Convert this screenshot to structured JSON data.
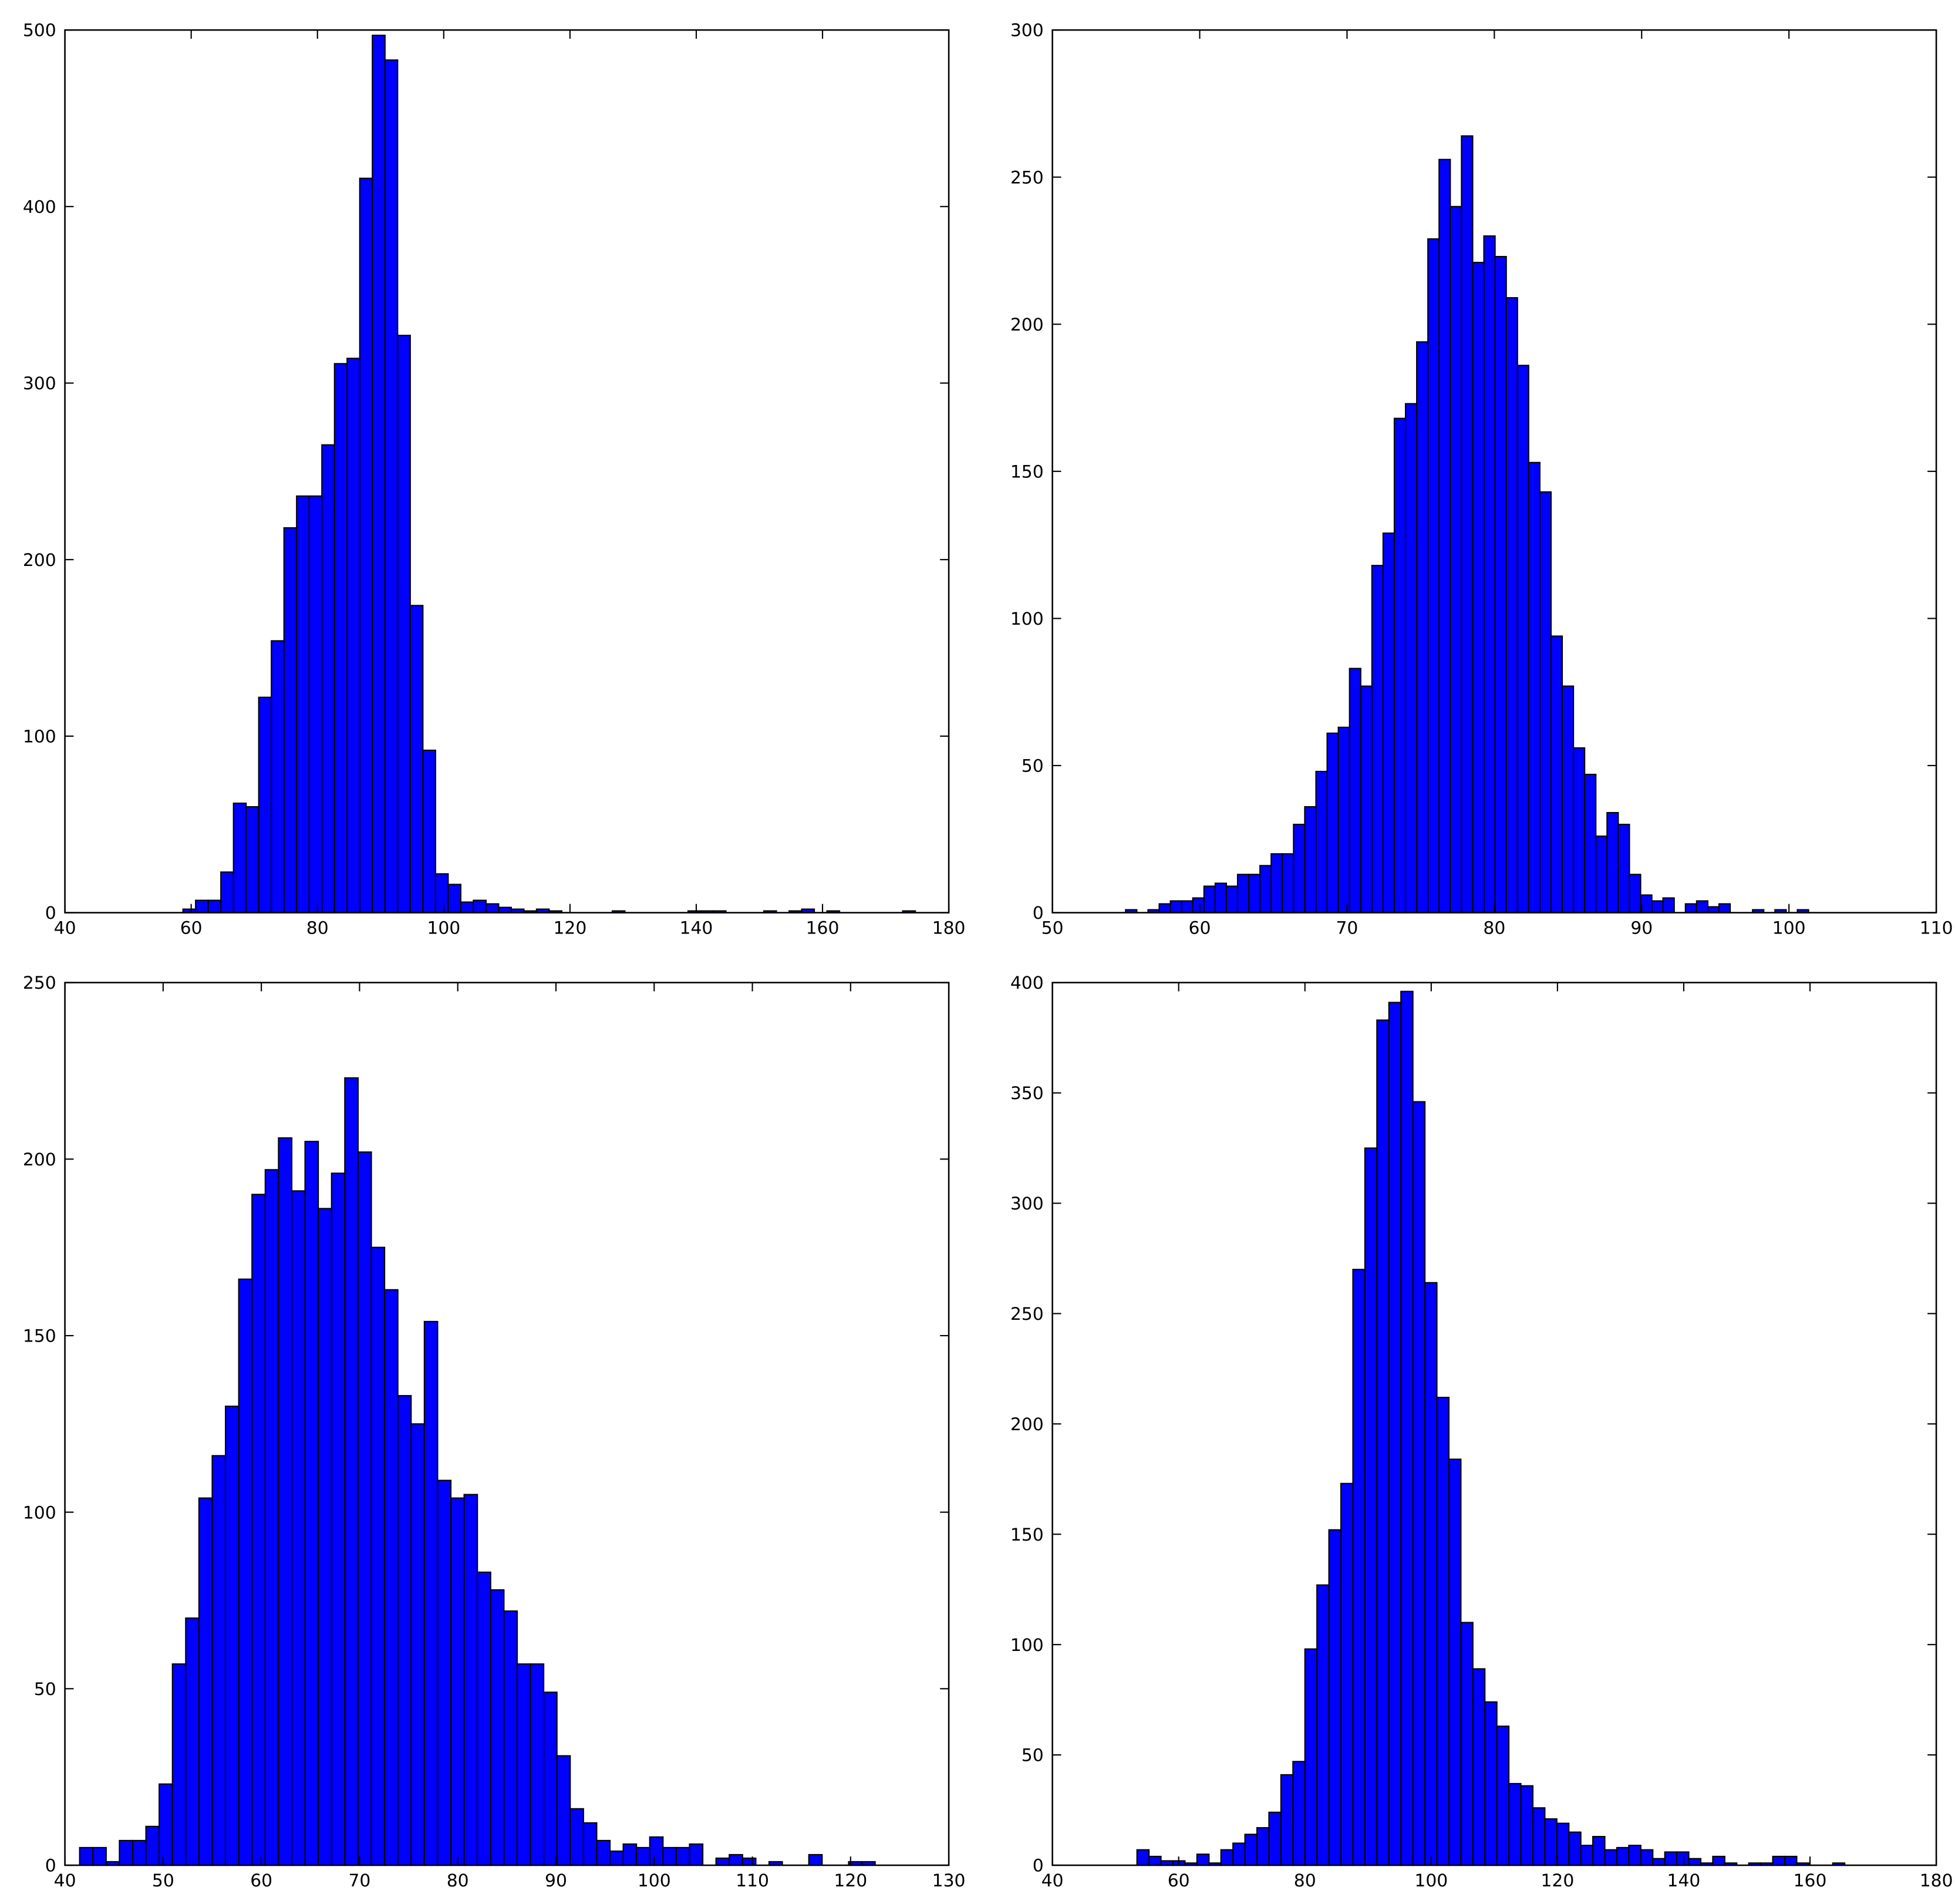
{
  "chart_data": [
    {
      "type": "histogram",
      "color": "#0000ff",
      "bins": [
        58.7,
        60.7,
        62.7,
        64.7,
        66.7,
        68.7,
        70.7,
        72.7,
        74.7,
        76.7,
        78.7,
        80.7,
        82.7,
        84.7,
        86.7,
        88.7,
        90.7,
        92.7,
        94.7,
        96.7,
        98.7,
        100.7,
        102.7,
        104.7,
        106.7,
        108.7,
        110.7,
        112.7,
        114.7,
        116.7,
        118.7,
        120.7,
        122.7,
        124.7,
        126.7,
        128.7,
        130.7,
        132.7,
        134.7,
        136.7,
        138.7,
        140.7,
        142.7,
        144.7,
        146.7,
        148.7,
        150.7,
        152.7,
        154.7,
        156.7,
        158.7,
        160.7,
        162.7,
        164.7,
        166.7,
        168.7,
        170.7,
        172.7,
        174.7,
        176.7
      ],
      "values": [
        2,
        7,
        7,
        23,
        62,
        60,
        122,
        154,
        218,
        236,
        236,
        265,
        311,
        314,
        416,
        497,
        483,
        327,
        174,
        92,
        22,
        16,
        6,
        7,
        5,
        3,
        2,
        1,
        2,
        1,
        0,
        0,
        0,
        0,
        1,
        0,
        0,
        0,
        0,
        0,
        1,
        1,
        1,
        0,
        0,
        0,
        1,
        0,
        1,
        2,
        0,
        1,
        0,
        0,
        0,
        0,
        0,
        1,
        0
      ],
      "xlim": [
        40,
        180
      ],
      "ylim": [
        0,
        500
      ],
      "xticks": [
        40,
        60,
        80,
        100,
        120,
        140,
        160,
        180
      ],
      "yticks": [
        0,
        100,
        200,
        300,
        400,
        500
      ]
    },
    {
      "type": "histogram",
      "color": "#0000ff",
      "bins": [
        54.97,
        55.73,
        56.49,
        57.25,
        58.01,
        58.77,
        59.53,
        60.29,
        61.05,
        61.81,
        62.57,
        63.33,
        64.09,
        64.85,
        65.61,
        66.37,
        67.13,
        67.89,
        68.65,
        69.41,
        70.17,
        70.93,
        71.69,
        72.45,
        73.21,
        73.97,
        74.73,
        75.49,
        76.25,
        77.01,
        77.77,
        78.53,
        79.29,
        80.05,
        80.81,
        81.57,
        82.33,
        83.09,
        83.85,
        84.61,
        85.37,
        86.13,
        86.89,
        87.65,
        88.41,
        89.17,
        89.93,
        90.69,
        91.45,
        92.21,
        92.97,
        93.73,
        94.49,
        95.25,
        96.01,
        96.77,
        97.53,
        98.29,
        99.05,
        99.81,
        100.57,
        101.33
      ],
      "values": [
        1,
        0,
        1,
        3,
        4,
        4,
        5,
        9,
        10,
        9,
        13,
        13,
        16,
        20,
        20,
        30,
        36,
        48,
        61,
        63,
        83,
        77,
        118,
        129,
        168,
        173,
        194,
        229,
        256,
        240,
        264,
        221,
        230,
        223,
        209,
        186,
        153,
        143,
        94,
        77,
        56,
        47,
        26,
        34,
        30,
        13,
        6,
        4,
        5,
        0,
        3,
        4,
        2,
        3,
        0,
        0,
        1,
        0,
        1,
        0,
        1
      ],
      "xlim": [
        50,
        110
      ],
      "ylim": [
        0,
        300
      ],
      "xticks": [
        50,
        60,
        70,
        80,
        90,
        100,
        110
      ],
      "yticks": [
        0,
        50,
        100,
        150,
        200,
        250,
        300
      ]
    },
    {
      "type": "histogram",
      "color": "#0000ff",
      "bins": [
        41.5,
        42.85,
        44.2,
        45.55,
        46.9,
        48.25,
        49.6,
        50.95,
        52.3,
        53.65,
        55,
        56.35,
        57.7,
        59.05,
        60.4,
        61.75,
        63.1,
        64.45,
        65.8,
        67.15,
        68.5,
        69.85,
        71.2,
        72.55,
        73.9,
        75.25,
        76.6,
        77.95,
        79.3,
        80.65,
        82,
        83.35,
        84.7,
        86.05,
        87.4,
        88.75,
        90.1,
        91.45,
        92.8,
        94.15,
        95.5,
        96.85,
        98.2,
        99.55,
        100.9,
        102.25,
        103.6,
        104.95,
        106.3,
        107.65,
        109,
        110.35,
        111.7,
        113.05,
        114.4,
        115.75,
        117.1,
        118.45,
        119.8,
        121.15,
        122.5
      ],
      "values": [
        5,
        5,
        1,
        7,
        7,
        11,
        23,
        57,
        70,
        104,
        116,
        130,
        166,
        190,
        197,
        206,
        191,
        205,
        186,
        196,
        223,
        202,
        175,
        163,
        133,
        125,
        154,
        109,
        104,
        105,
        83,
        78,
        72,
        57,
        57,
        49,
        31,
        16,
        12,
        7,
        4,
        6,
        5,
        8,
        5,
        5,
        6,
        0,
        2,
        3,
        2,
        0,
        1,
        0,
        0,
        3,
        0,
        0,
        1,
        1
      ],
      "xlim": [
        40,
        130
      ],
      "ylim": [
        0,
        250
      ],
      "xticks": [
        40,
        50,
        60,
        70,
        80,
        90,
        100,
        110,
        120,
        130
      ],
      "yticks": [
        0,
        50,
        100,
        150,
        200,
        250
      ]
    },
    {
      "type": "histogram",
      "color": "#0000ff",
      "bins": [
        53.4,
        55.3,
        57.2,
        59.1,
        61,
        62.9,
        64.8,
        66.7,
        68.6,
        70.5,
        72.4,
        74.3,
        76.2,
        78.1,
        80,
        81.9,
        83.8,
        85.7,
        87.6,
        89.5,
        91.4,
        93.3,
        95.2,
        97.1,
        99,
        100.9,
        102.8,
        104.7,
        106.6,
        108.5,
        110.4,
        112.3,
        114.2,
        116.1,
        118,
        119.9,
        121.8,
        123.7,
        125.6,
        127.5,
        129.4,
        131.3,
        133.2,
        135.1,
        137,
        138.9,
        140.8,
        142.7,
        144.6,
        146.5,
        148.4,
        150.3,
        152.2,
        154.1,
        156,
        157.9,
        159.8,
        161.7,
        163.6,
        165.5,
        167.4
      ],
      "values": [
        7,
        4,
        2,
        2,
        1,
        5,
        1,
        7,
        10,
        14,
        17,
        24,
        41,
        47,
        98,
        127,
        152,
        173,
        270,
        325,
        383,
        391,
        396,
        346,
        264,
        212,
        184,
        110,
        89,
        74,
        63,
        37,
        36,
        26,
        21,
        19,
        15,
        9,
        13,
        7,
        8,
        9,
        7,
        3,
        6,
        6,
        3,
        1,
        4,
        1,
        0,
        1,
        1,
        4,
        4,
        1,
        0,
        0,
        1,
        0
      ],
      "xlim": [
        40,
        180
      ],
      "ylim": [
        0,
        400
      ],
      "xticks": [
        40,
        60,
        80,
        100,
        120,
        140,
        160,
        180
      ],
      "yticks": [
        0,
        50,
        100,
        150,
        200,
        250,
        300,
        350,
        400
      ]
    }
  ]
}
